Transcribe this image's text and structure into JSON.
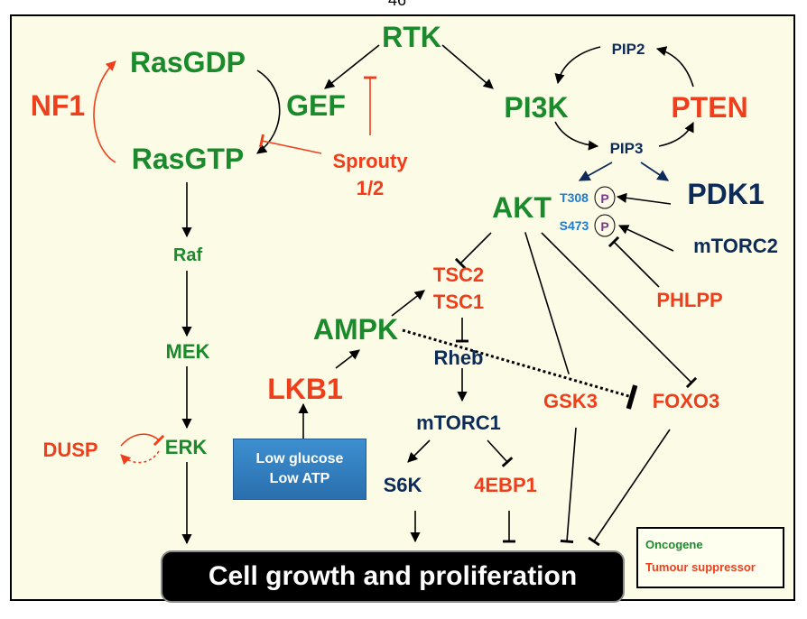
{
  "page_number": "46",
  "nodes": {
    "rtk": "RTK",
    "rasgdp": "RasGDP",
    "rasgtp": "RasGTP",
    "gef": "GEF",
    "nf1": "NF1",
    "sprouty_line1": "Sprouty",
    "sprouty_line2": "1/2",
    "pi3k": "PI3K",
    "pten": "PTEN",
    "pip2": "PIP2",
    "pip3": "PIP3",
    "akt": "AKT",
    "t308": "T308",
    "s473": "S473",
    "phospho": "P",
    "pdk1": "PDK1",
    "mtorc2": "mTORC2",
    "phlpp": "PHLPP",
    "tsc2": "TSC2",
    "tsc1": "TSC1",
    "rheb": "Rheb",
    "ampk": "AMPK",
    "lkb1": "LKB1",
    "mtorc1": "mTORC1",
    "s6k": "S6K",
    "4ebp1": "4EBP1",
    "gsk3": "GSK3",
    "foxo3": "FOXO3",
    "raf": "Raf",
    "mek": "MEK",
    "erk": "ERK",
    "dusp": "DUSP"
  },
  "stress_box": {
    "line1": "Low glucose",
    "line2": "Low ATP"
  },
  "outcome": "Cell growth and proliferation",
  "legend": {
    "oncogene": "Oncogene",
    "tumour_suppressor": "Tumour suppressor"
  },
  "colors": {
    "oncogene": "#1a8a2c",
    "tumour_suppressor": "#ef3e1c",
    "other": "#0d2b59",
    "site": "#1f7ad1"
  }
}
